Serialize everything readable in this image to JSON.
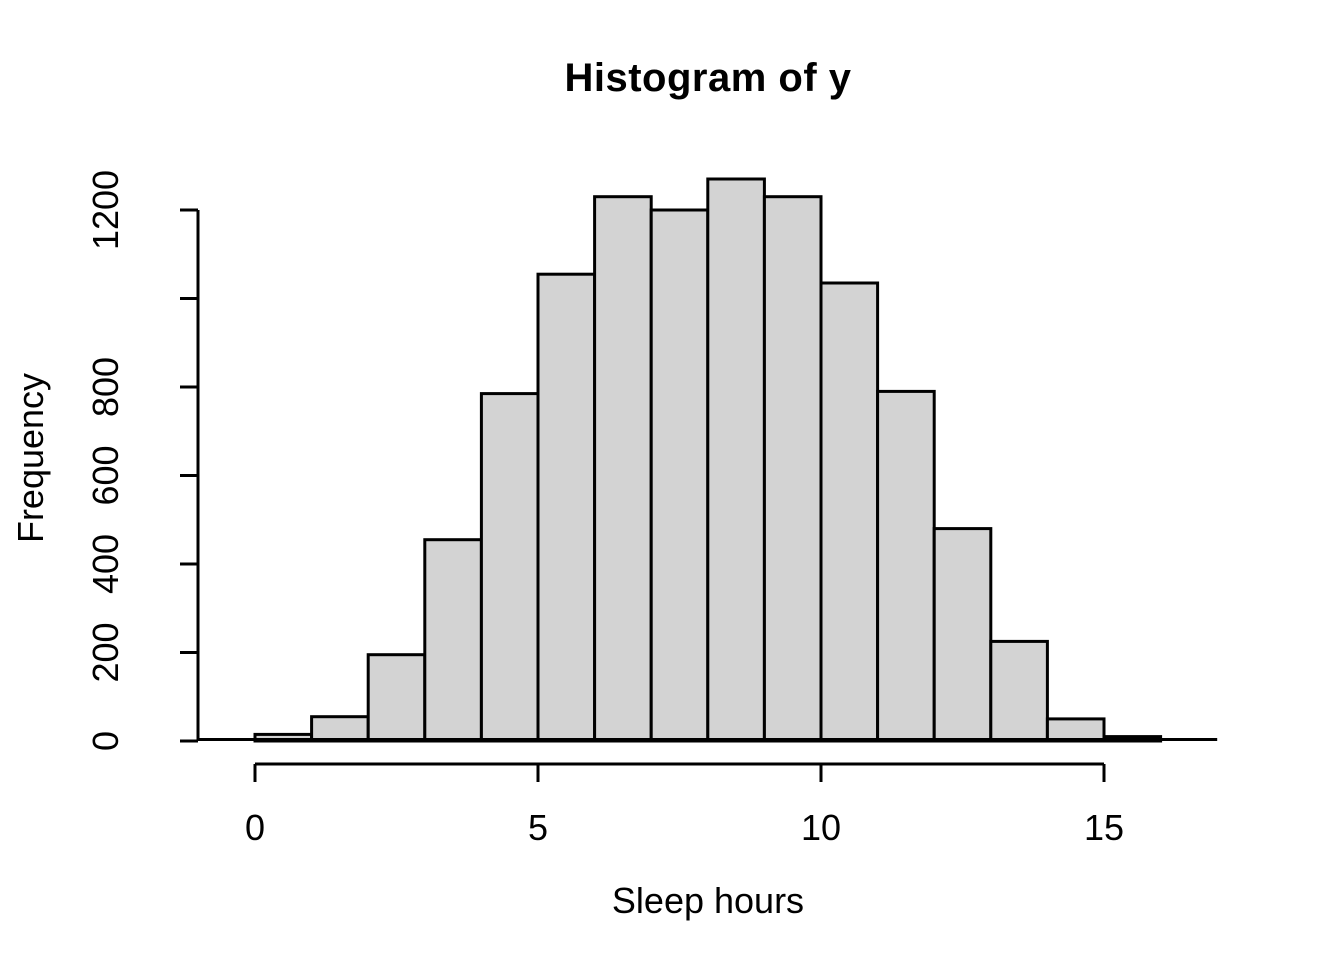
{
  "chart_data": {
    "type": "bar",
    "subtype": "histogram",
    "title": "Histogram of y",
    "xlabel": "Sleep hours",
    "ylabel": "Frequency",
    "bin_start": -1,
    "bin_width": 1,
    "bin_edges": [
      -1,
      0,
      1,
      2,
      3,
      4,
      5,
      6,
      7,
      8,
      9,
      10,
      11,
      12,
      13,
      14,
      15,
      16,
      17
    ],
    "counts": [
      0,
      15,
      55,
      195,
      455,
      785,
      1055,
      1230,
      1200,
      1270,
      1230,
      1035,
      790,
      480,
      225,
      50,
      10,
      0
    ],
    "x_ticks": [
      0,
      5,
      10,
      15
    ],
    "x_tick_labels": [
      "0",
      "5",
      "10",
      "15"
    ],
    "y_ticks": [
      0,
      200,
      400,
      600,
      800,
      1000,
      1200
    ],
    "y_tick_labels": [
      "0",
      "200",
      "400",
      "600",
      "800",
      "",
      "1200"
    ],
    "xlim": [
      -1,
      17
    ],
    "ylim": [
      0,
      1270
    ],
    "grid": false,
    "legend": "none",
    "bar_fill": "#d3d3d3",
    "bar_stroke": "#000000",
    "axis_color": "#000000",
    "background": "#ffffff"
  }
}
